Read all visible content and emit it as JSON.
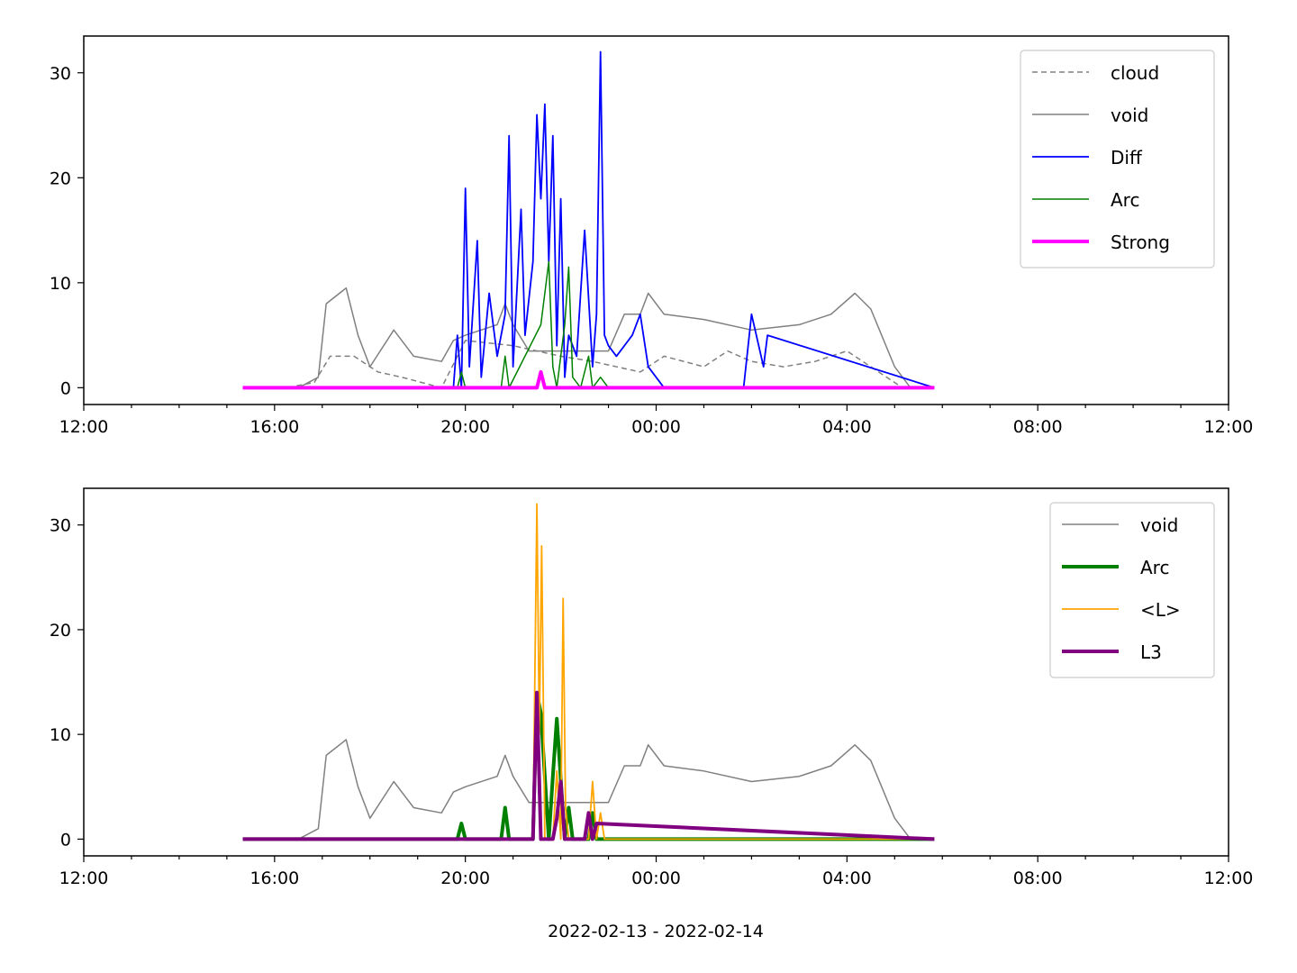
{
  "colors": {
    "cloud": "#808080",
    "void": "#808080",
    "diff": "#0000ff",
    "arc": "#008000",
    "strong": "#ff00ff",
    "L_avg": "#ffa500",
    "L3": "#800080"
  },
  "chart_data": [
    {
      "type": "line",
      "title": "",
      "xlabel": "",
      "ylabel": "",
      "xlim": [
        "2022-02-13 12:00",
        "2022-02-14 12:00"
      ],
      "ylim": [
        -1.6,
        33.5
      ],
      "x_tick_labels": [
        "12:00",
        "16:00",
        "20:00",
        "00:00",
        "04:00",
        "08:00",
        "12:00"
      ],
      "y_tick_labels": [
        "0",
        "10",
        "20",
        "30"
      ],
      "y_ticks": [
        0,
        10,
        20,
        30
      ],
      "legend_position": "upper right",
      "legend": [
        "cloud",
        "void",
        "Diff",
        "Arc",
        "Strong"
      ],
      "series": [
        {
          "name": "cloud",
          "style": "dashed",
          "x": [
            "2022-02-13 15:20",
            "2022-02-13 16:15",
            "2022-02-13 16:50",
            "2022-02-13 17:10",
            "2022-02-13 17:40",
            "2022-02-13 18:10",
            "2022-02-13 18:40",
            "2022-02-13 19:30",
            "2022-02-13 20:00",
            "2022-02-13 21:00",
            "2022-02-13 22:00",
            "2022-02-13 22:40",
            "2022-02-13 23:40",
            "2022-02-14 00:10",
            "2022-02-14 01:00",
            "2022-02-14 01:30",
            "2022-02-14 02:00",
            "2022-02-14 02:40",
            "2022-02-14 03:20",
            "2022-02-14 04:00",
            "2022-02-14 04:40",
            "2022-02-14 05:10",
            "2022-02-14 05:50"
          ],
          "y": [
            0,
            0,
            0.5,
            3,
            3,
            1.5,
            1,
            0,
            4.5,
            4,
            3,
            2.5,
            1.5,
            3,
            2,
            3.5,
            2.5,
            2,
            2.5,
            3.5,
            1.5,
            0,
            0
          ]
        },
        {
          "name": "void",
          "style": "solid",
          "x": [
            "2022-02-13 15:20",
            "2022-02-13 16:30",
            "2022-02-13 16:55",
            "2022-02-13 17:05",
            "2022-02-13 17:30",
            "2022-02-13 17:45",
            "2022-02-13 18:00",
            "2022-02-13 18:30",
            "2022-02-13 18:55",
            "2022-02-13 19:30",
            "2022-02-13 19:45",
            "2022-02-13 20:00",
            "2022-02-13 20:40",
            "2022-02-13 20:50",
            "2022-02-13 21:00",
            "2022-02-13 21:20",
            "2022-02-13 22:00",
            "2022-02-13 22:40",
            "2022-02-13 23:00",
            "2022-02-13 23:20",
            "2022-02-13 23:40",
            "2022-02-13 23:50",
            "2022-02-14 00:10",
            "2022-02-14 01:00",
            "2022-02-14 02:00",
            "2022-02-14 03:00",
            "2022-02-14 03:40",
            "2022-02-14 04:10",
            "2022-02-14 04:30",
            "2022-02-14 05:00",
            "2022-02-14 05:20",
            "2022-02-14 05:50"
          ],
          "y": [
            0,
            0,
            1,
            8,
            9.5,
            5,
            2,
            5.5,
            3,
            2.5,
            4.5,
            5,
            6,
            8,
            6,
            3.5,
            3.5,
            3.5,
            3.5,
            7,
            7,
            9,
            7,
            6.5,
            5.5,
            6,
            7,
            9,
            7.5,
            2,
            0,
            0
          ]
        },
        {
          "name": "Diff",
          "style": "solid",
          "x": [
            "2022-02-13 15:20",
            "2022-02-13 19:45",
            "2022-02-13 19:50",
            "2022-02-13 19:55",
            "2022-02-13 20:00",
            "2022-02-13 20:05",
            "2022-02-13 20:15",
            "2022-02-13 20:20",
            "2022-02-13 20:30",
            "2022-02-13 20:40",
            "2022-02-13 20:50",
            "2022-02-13 20:55",
            "2022-02-13 21:00",
            "2022-02-13 21:10",
            "2022-02-13 21:15",
            "2022-02-13 21:25",
            "2022-02-13 21:30",
            "2022-02-13 21:35",
            "2022-02-13 21:40",
            "2022-02-13 21:45",
            "2022-02-13 21:50",
            "2022-02-13 21:55",
            "2022-02-13 22:00",
            "2022-02-13 22:05",
            "2022-02-13 22:10",
            "2022-02-13 22:20",
            "2022-02-13 22:30",
            "2022-02-13 22:40",
            "2022-02-13 22:45",
            "2022-02-13 22:50",
            "2022-02-13 22:55",
            "2022-02-13 23:00",
            "2022-02-13 23:10",
            "2022-02-13 23:30",
            "2022-02-13 23:40",
            "2022-02-13 23:50",
            "2022-02-14 00:10",
            "2022-02-14 01:50",
            "2022-02-14 02:00",
            "2022-02-14 02:15",
            "2022-02-14 02:20",
            "2022-02-14 05:50"
          ],
          "y": [
            0,
            0,
            5,
            0,
            19,
            2,
            14,
            1,
            9,
            3,
            7,
            24,
            2,
            17,
            5,
            12,
            26,
            18,
            27,
            12,
            24,
            4,
            18,
            1,
            5,
            3,
            15,
            2,
            7,
            32,
            5,
            4,
            3,
            5,
            7,
            2,
            0,
            0,
            7,
            2,
            5,
            0
          ]
        },
        {
          "name": "Arc",
          "style": "solid",
          "x": [
            "2022-02-13 15:20",
            "2022-02-13 19:50",
            "2022-02-13 19:55",
            "2022-02-13 20:00",
            "2022-02-13 20:45",
            "2022-02-13 20:50",
            "2022-02-13 20:55",
            "2022-02-13 21:35",
            "2022-02-13 21:45",
            "2022-02-13 21:50",
            "2022-02-13 21:55",
            "2022-02-13 22:05",
            "2022-02-13 22:10",
            "2022-02-13 22:15",
            "2022-02-13 22:25",
            "2022-02-13 22:35",
            "2022-02-13 22:40",
            "2022-02-13 22:50",
            "2022-02-13 23:00",
            "2022-02-14 05:50"
          ],
          "y": [
            0,
            0,
            1.5,
            0,
            0,
            3,
            0,
            6,
            12,
            2,
            0,
            6,
            11.5,
            1,
            0,
            3,
            0,
            1,
            0,
            0
          ]
        },
        {
          "name": "Strong",
          "style": "solid",
          "x": [
            "2022-02-13 15:20",
            "2022-02-13 21:30",
            "2022-02-13 21:35",
            "2022-02-13 21:40",
            "2022-02-14 05:50"
          ],
          "y": [
            0,
            0,
            1.5,
            0,
            0
          ]
        }
      ]
    },
    {
      "type": "line",
      "title": "",
      "xlabel": "2022-02-13 - 2022-02-14",
      "ylabel": "",
      "xlim": [
        "2022-02-13 12:00",
        "2022-02-14 12:00"
      ],
      "ylim": [
        -1.6,
        33.5
      ],
      "x_tick_labels": [
        "12:00",
        "16:00",
        "20:00",
        "00:00",
        "04:00",
        "08:00",
        "12:00"
      ],
      "y_tick_labels": [
        "0",
        "10",
        "20",
        "30"
      ],
      "y_ticks": [
        0,
        10,
        20,
        30
      ],
      "legend_position": "upper right",
      "legend": [
        "void",
        "Arc",
        "<L>",
        "L3"
      ],
      "series": [
        {
          "name": "void",
          "style": "solid",
          "x": [
            "2022-02-13 15:20",
            "2022-02-13 16:30",
            "2022-02-13 16:55",
            "2022-02-13 17:05",
            "2022-02-13 17:30",
            "2022-02-13 17:45",
            "2022-02-13 18:00",
            "2022-02-13 18:30",
            "2022-02-13 18:55",
            "2022-02-13 19:30",
            "2022-02-13 19:45",
            "2022-02-13 20:00",
            "2022-02-13 20:40",
            "2022-02-13 20:50",
            "2022-02-13 21:00",
            "2022-02-13 21:20",
            "2022-02-13 22:00",
            "2022-02-13 22:40",
            "2022-02-13 23:00",
            "2022-02-13 23:20",
            "2022-02-13 23:40",
            "2022-02-13 23:50",
            "2022-02-14 00:10",
            "2022-02-14 01:00",
            "2022-02-14 02:00",
            "2022-02-14 03:00",
            "2022-02-14 03:40",
            "2022-02-14 04:10",
            "2022-02-14 04:30",
            "2022-02-14 05:00",
            "2022-02-14 05:20",
            "2022-02-14 05:50"
          ],
          "y": [
            0,
            0,
            1,
            8,
            9.5,
            5,
            2,
            5.5,
            3,
            2.5,
            4.5,
            5,
            6,
            8,
            6,
            3.5,
            3.5,
            3.5,
            3.5,
            7,
            7,
            9,
            7,
            6.5,
            5.5,
            6,
            7,
            9,
            7.5,
            2,
            0,
            0
          ]
        },
        {
          "name": "Arc",
          "style": "solid",
          "x": [
            "2022-02-13 15:20",
            "2022-02-13 19:50",
            "2022-02-13 19:55",
            "2022-02-13 20:00",
            "2022-02-13 20:45",
            "2022-02-13 20:50",
            "2022-02-13 20:55",
            "2022-02-13 21:25",
            "2022-02-13 21:30",
            "2022-02-13 21:35",
            "2022-02-13 21:45",
            "2022-02-13 21:50",
            "2022-02-13 21:55",
            "2022-02-13 22:05",
            "2022-02-13 22:10",
            "2022-02-13 22:15",
            "2022-02-13 22:35",
            "2022-02-13 22:40",
            "2022-02-13 22:45",
            "2022-02-14 05:50"
          ],
          "y": [
            0,
            0,
            1.5,
            0,
            0,
            3,
            0,
            0,
            14,
            12,
            0,
            6,
            11.5,
            0,
            3,
            0,
            0,
            2.5,
            0,
            0
          ]
        },
        {
          "name": "<L>",
          "style": "solid",
          "x": [
            "2022-02-13 15:20",
            "2022-02-13 21:25",
            "2022-02-13 21:30",
            "2022-02-13 21:33",
            "2022-02-13 21:36",
            "2022-02-13 21:40",
            "2022-02-13 21:50",
            "2022-02-13 21:55",
            "2022-02-13 22:00",
            "2022-02-13 22:03",
            "2022-02-13 22:06",
            "2022-02-13 22:10",
            "2022-02-13 22:35",
            "2022-02-13 22:40",
            "2022-02-13 22:45",
            "2022-02-13 22:50",
            "2022-02-13 22:55",
            "2022-02-14 05:50"
          ],
          "y": [
            0,
            0,
            32,
            10,
            28,
            0,
            0,
            6.5,
            0,
            23,
            3,
            0,
            0,
            5.5,
            0,
            2.5,
            0,
            0
          ]
        },
        {
          "name": "L3",
          "style": "solid",
          "x": [
            "2022-02-13 15:20",
            "2022-02-13 21:25",
            "2022-02-13 21:30",
            "2022-02-13 21:35",
            "2022-02-13 21:50",
            "2022-02-13 21:55",
            "2022-02-13 22:00",
            "2022-02-13 22:05",
            "2022-02-13 22:30",
            "2022-02-13 22:35",
            "2022-02-13 22:40",
            "2022-02-13 22:45",
            "2022-02-14 05:50"
          ],
          "y": [
            0,
            0,
            14,
            0,
            0,
            2,
            5.5,
            0,
            0,
            2.5,
            0,
            1.5,
            0
          ]
        }
      ]
    }
  ]
}
